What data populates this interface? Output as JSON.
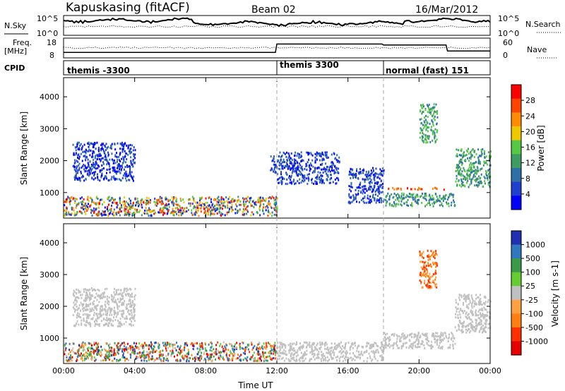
{
  "header": {
    "station": "Kapuskasing (fitACF)",
    "beam": "Beam 02",
    "date": "16/Mar/2012"
  },
  "status_panels": {
    "nsky_label": "N.Sky",
    "nsky_ticks": [
      "10^5",
      "10^0"
    ],
    "nsearch_label": "N.Search",
    "freq_label": "Freq.",
    "freq_unit": "[MHz]",
    "freq_ticks": [
      "18",
      "8"
    ],
    "nave_label": "Nave",
    "nave_ticks": [
      "60",
      "0"
    ],
    "cpid_label": "CPID",
    "cpid_segments": [
      {
        "label": "themis -3300",
        "start_hour": 0,
        "end_hour": 12
      },
      {
        "label": "themis 3300",
        "start_hour": 12,
        "end_hour": 18
      },
      {
        "label": "normal (fast) 151",
        "start_hour": 18,
        "end_hour": 24
      }
    ]
  },
  "chart_data": [
    {
      "type": "heatmap",
      "name": "power-panel",
      "ylabel": "Slant Range [km]",
      "xlabel": "Time UT",
      "x_unit": "hours UT",
      "xlim": [
        0,
        24
      ],
      "ylim": [
        200,
        4600
      ],
      "x_ticks": [
        "00:00",
        "04:00",
        "08:00",
        "12:00",
        "16:00",
        "20:00",
        "00:00"
      ],
      "y_ticks": [
        "1000",
        "2000",
        "3000",
        "4000"
      ],
      "colorbar": {
        "label": "Power [dB]",
        "tick_labels": [
          "4",
          "8",
          "12",
          "16",
          "20",
          "24",
          "28"
        ],
        "colors": [
          "#0000ff",
          "#1f3fcf",
          "#2f6fa8",
          "#3e9b62",
          "#55c845",
          "#f0c800",
          "#ff8c00",
          "#ff4400",
          "#ff0000"
        ]
      },
      "regions": [
        {
          "t": [
            0.0,
            12.0
          ],
          "r": [
            300,
            900
          ],
          "level": "mixed"
        },
        {
          "t": [
            0.5,
            4.0
          ],
          "r": [
            1400,
            2600
          ],
          "level": "low"
        },
        {
          "t": [
            11.6,
            12.0
          ],
          "r": [
            1600,
            2200
          ],
          "level": "low"
        },
        {
          "t": [
            12.0,
            15.5
          ],
          "r": [
            1300,
            2300
          ],
          "level": "low"
        },
        {
          "t": [
            16.0,
            18.0
          ],
          "r": [
            700,
            1800
          ],
          "level": "low"
        },
        {
          "t": [
            18.0,
            21.5
          ],
          "r": [
            1150,
            1150
          ],
          "level": "high"
        },
        {
          "t": [
            18.0,
            22.0
          ],
          "r": [
            600,
            1000
          ],
          "level": "mid"
        },
        {
          "t": [
            20.0,
            21.0
          ],
          "r": [
            2600,
            3800
          ],
          "level": "mid"
        },
        {
          "t": [
            22.0,
            24.0
          ],
          "r": [
            1200,
            2400
          ],
          "level": "mid"
        }
      ]
    },
    {
      "type": "heatmap",
      "name": "velocity-panel",
      "ylabel": "Slant Range [km]",
      "xlabel": "Time UT",
      "x_unit": "hours UT",
      "xlim": [
        0,
        24
      ],
      "ylim": [
        200,
        4600
      ],
      "x_ticks": [
        "00:00",
        "04:00",
        "08:00",
        "12:00",
        "16:00",
        "20:00",
        "00:00"
      ],
      "y_ticks": [
        "1000",
        "2000",
        "3000",
        "4000"
      ],
      "colorbar": {
        "label": "Velocity [m s-1]",
        "tick_labels": [
          "1000",
          "500",
          "100",
          "25",
          "-25",
          "-100",
          "-500",
          "-1000"
        ],
        "colors": [
          "#2030b0",
          "#2f78c0",
          "#3a9a4a",
          "#66cc33",
          "#c0c0c0",
          "#ffa040",
          "#ff8010",
          "#ff3000",
          "#e80000"
        ]
      },
      "regions": [
        {
          "t": [
            0.0,
            12.0
          ],
          "r": [
            300,
            900
          ],
          "level": "mixed"
        },
        {
          "t": [
            0.5,
            4.0
          ],
          "r": [
            1400,
            2600
          ],
          "level": "ground"
        },
        {
          "t": [
            12.0,
            18.0
          ],
          "r": [
            300,
            900
          ],
          "level": "ground"
        },
        {
          "t": [
            18.0,
            22.0
          ],
          "r": [
            700,
            1200
          ],
          "level": "ground"
        },
        {
          "t": [
            20.0,
            21.0
          ],
          "r": [
            2600,
            3800
          ],
          "level": "away"
        },
        {
          "t": [
            22.0,
            24.0
          ],
          "r": [
            1200,
            2400
          ],
          "level": "ground"
        }
      ]
    }
  ]
}
